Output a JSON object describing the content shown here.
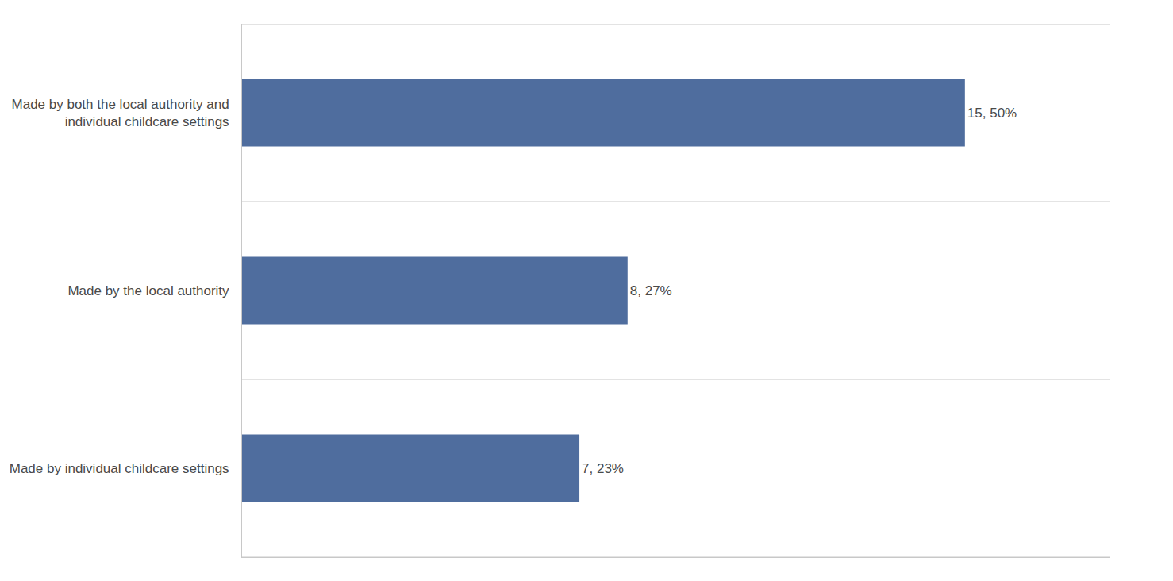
{
  "chart_data": {
    "type": "bar",
    "orientation": "horizontal",
    "categories": [
      "Made by both the local authority and\nindividual childcare settings",
      "Made by the local authority",
      "Made by individual childcare settings"
    ],
    "values": [
      15,
      8,
      7
    ],
    "value_labels": [
      "15, 50%",
      "8, 27%",
      "7, 23%"
    ],
    "data_labels": true,
    "color": "#4f6d9e",
    "xlim": [
      0,
      18
    ],
    "tick_labels": "y",
    "grid": true
  }
}
